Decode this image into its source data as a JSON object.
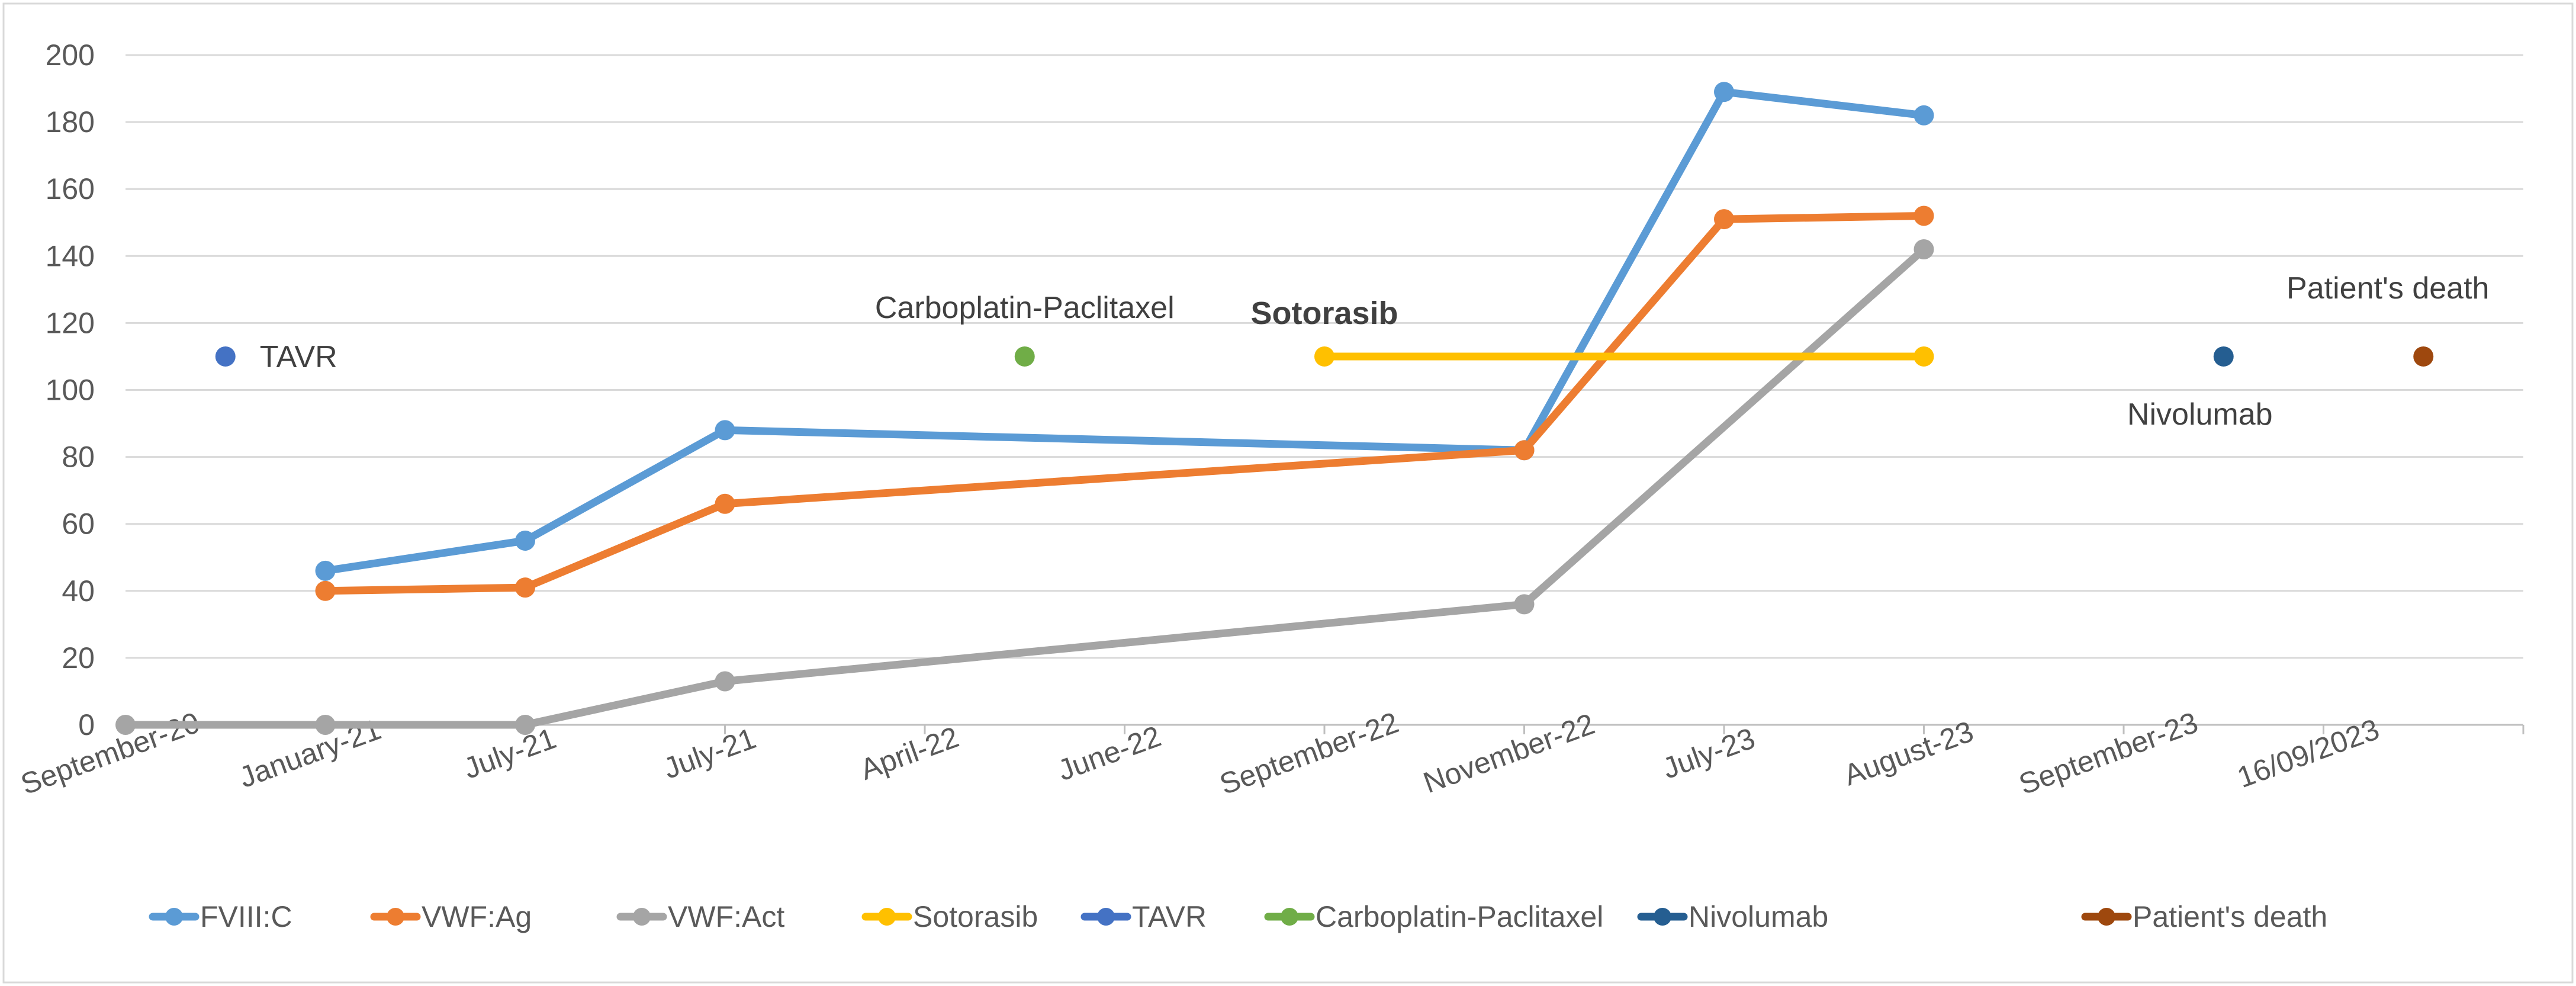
{
  "chart_data": {
    "type": "line",
    "categories": [
      "September-20",
      "January-21",
      "July-21",
      "July-21",
      "April-22",
      "June-22",
      "September-22",
      "November-22",
      "July-23",
      "August-23",
      "September-23",
      "16/09/2023"
    ],
    "ylim": [
      0,
      200
    ],
    "yticks": [
      "0",
      "20",
      "40",
      "60",
      "80",
      "100",
      "120",
      "140",
      "160",
      "180",
      "200"
    ],
    "grid": true,
    "series": [
      {
        "name": "FVIII:C",
        "color": "#5B9BD5",
        "points": [
          [
            1,
            46
          ],
          [
            2,
            55
          ],
          [
            3,
            88
          ],
          [
            7,
            82
          ],
          [
            8,
            189
          ],
          [
            9,
            182
          ]
        ]
      },
      {
        "name": "VWF:Ag",
        "color": "#ED7D31",
        "points": [
          [
            1,
            40
          ],
          [
            2,
            41
          ],
          [
            3,
            66
          ],
          [
            7,
            82
          ],
          [
            8,
            151
          ],
          [
            9,
            152
          ]
        ]
      },
      {
        "name": "VWF:Act",
        "color": "#A5A5A5",
        "points": [
          [
            0,
            0
          ],
          [
            1,
            0
          ],
          [
            2,
            0
          ],
          [
            3,
            13
          ],
          [
            7,
            36
          ],
          [
            9,
            142
          ]
        ]
      },
      {
        "name": "Sotorasib",
        "color": "#FFC000",
        "points": [
          [
            6,
            110
          ],
          [
            9,
            110
          ]
        ]
      },
      {
        "name": "TAVR",
        "color": "#4472C4",
        "points": [
          [
            0.5,
            110
          ]
        ]
      },
      {
        "name": "Carboplatin-Paclitaxel",
        "color": "#70AD47",
        "points": [
          [
            4.5,
            110
          ]
        ]
      },
      {
        "name": "Nivolumab",
        "color": "#255E91",
        "points": [
          [
            10.5,
            110
          ]
        ]
      },
      {
        "name": "Patient's death",
        "color": "#9E480E",
        "points": [
          [
            11.5,
            110
          ]
        ]
      }
    ],
    "annotations": [
      {
        "text": "TAVR",
        "x": 0.5,
        "y": 110,
        "bold": false
      },
      {
        "text": "Carboplatin-Paclitaxel",
        "x": 4.5,
        "y": 110,
        "bold": false
      },
      {
        "text": "Sotorasib",
        "x": 6,
        "y": 110,
        "bold": true
      },
      {
        "text": "Nivolumab",
        "x": 10.5,
        "y": 110,
        "bold": false
      },
      {
        "text": "Patient's death",
        "x": 11.5,
        "y": 110,
        "bold": false
      }
    ],
    "legend": [
      "FVIII:C",
      "VWF:Ag",
      "VWF:Act",
      "Sotorasib",
      "TAVR",
      "Carboplatin-Paclitaxel",
      "Nivolumab",
      "Patient's death"
    ],
    "legend_position": "bottom"
  }
}
